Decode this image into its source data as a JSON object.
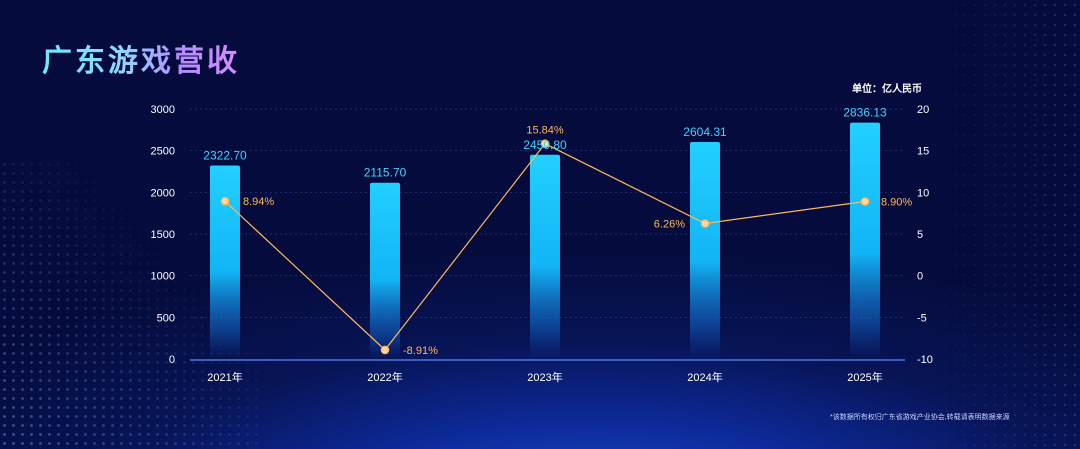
{
  "title": "广东游戏营收",
  "unit": "单位：亿人民币",
  "footnote": "*该数据所有权归广东省游戏产业协会,转载请表明数据来源",
  "chart_data": {
    "type": "bar",
    "categories": [
      "2021年",
      "2022年",
      "2023年",
      "2024年",
      "2025年"
    ],
    "series": [
      {
        "type": "bar",
        "values": [
          2322.7,
          2115.7,
          2450.8,
          2604.31,
          2836.13
        ],
        "labels": [
          "2322.70",
          "2115.70",
          "2450.80",
          "2604.31",
          "2836.13"
        ],
        "color": "#1ec8ff"
      },
      {
        "type": "line",
        "axis": "right",
        "values": [
          8.94,
          -8.91,
          15.84,
          6.26,
          8.9
        ],
        "labels": [
          "8.94%",
          "-8.91%",
          "15.84%",
          "6.26%",
          "8.90%"
        ],
        "color": "#ffb85c"
      }
    ],
    "y_left": {
      "ylim": [
        0,
        3000
      ],
      "ticks": [
        0,
        500,
        1000,
        1500,
        2000,
        2500,
        3000
      ]
    },
    "y_right": {
      "ylim": [
        -10,
        20
      ],
      "ticks": [
        -10,
        -5,
        0,
        5,
        10,
        15,
        20
      ]
    },
    "grid": true
  }
}
